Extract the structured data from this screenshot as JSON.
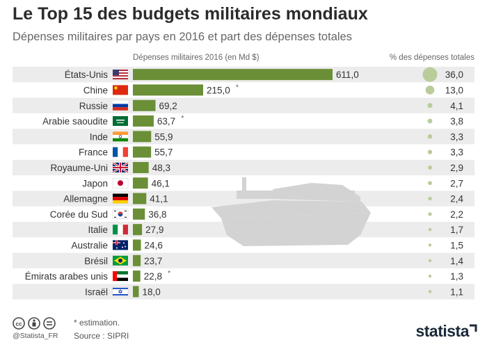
{
  "title": "Le Top 15 des budgets militaires mondiaux",
  "subtitle": "Dépenses militaires par pays en 2016 et part des dépenses totales",
  "column_headers": {
    "spending": "Dépenses militaires 2016 (en Md $)",
    "share": "% des dépenses totales"
  },
  "footnote": {
    "estimation": "* estimation.",
    "source": "Source : SIPRI"
  },
  "credit": "@Statista_FR",
  "brand": "statista",
  "colors": {
    "bar": "#6a8f37",
    "bubble": "#b9cc9a",
    "row_band": "#ececec",
    "watermark": "#d3d3d3"
  },
  "chart_data": {
    "type": "bar",
    "orientation": "horizontal",
    "categories": [
      "États-Unis",
      "Chine",
      "Russie",
      "Arabie saoudite",
      "Inde",
      "France",
      "Royaume-Uni",
      "Japon",
      "Allemagne",
      "Corée du Sud",
      "Italie",
      "Australie",
      "Brésil",
      "Émirats arabes unis",
      "Israël"
    ],
    "flags": [
      "flag-usa-icon",
      "flag-china-icon",
      "flag-russia-icon",
      "flag-saudi-arabia-icon",
      "flag-india-icon",
      "flag-france-icon",
      "flag-uk-icon",
      "flag-japan-icon",
      "flag-germany-icon",
      "flag-south-korea-icon",
      "flag-italy-icon",
      "flag-australia-icon",
      "flag-brazil-icon",
      "flag-uae-icon",
      "flag-israel-icon"
    ],
    "series": [
      {
        "values": [
          611.0,
          215.0,
          69.2,
          63.7,
          55.9,
          55.7,
          48.3,
          46.1,
          41.1,
          36.8,
          27.9,
          24.6,
          23.7,
          22.8,
          18.0
        ],
        "labels": [
          "611,0",
          "215,0",
          "69,2",
          "63,7",
          "55,9",
          "55,7",
          "48,3",
          "46,1",
          "41,1",
          "36,8",
          "27,9",
          "24,6",
          "23,7",
          "22,8",
          "18,0"
        ],
        "estimated": [
          false,
          true,
          false,
          true,
          false,
          false,
          false,
          false,
          false,
          false,
          false,
          false,
          false,
          true,
          false
        ]
      },
      {
        "values": [
          36.0,
          13.0,
          4.1,
          3.8,
          3.3,
          3.3,
          2.9,
          2.7,
          2.4,
          2.2,
          1.7,
          1.5,
          1.4,
          1.3,
          1.1
        ],
        "labels": [
          "36,0",
          "13,0",
          "4,1",
          "3,8",
          "3,3",
          "3,3",
          "2,9",
          "2,7",
          "2,4",
          "2,2",
          "1,7",
          "1,5",
          "1,4",
          "1,3",
          "1,1"
        ]
      }
    ],
    "estimate_marker": "*",
    "grid": false,
    "legend": "none"
  }
}
